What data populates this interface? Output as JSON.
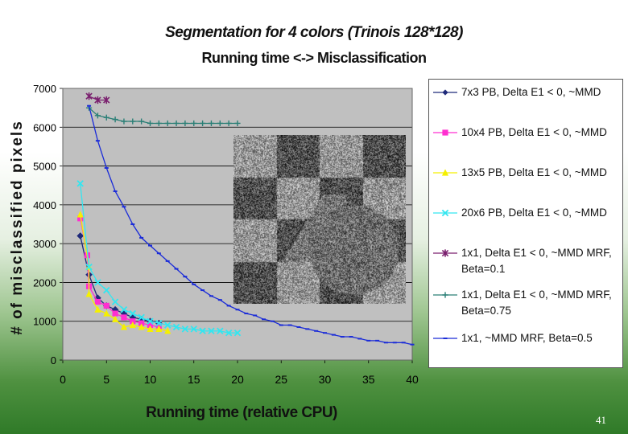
{
  "slide": {
    "title": "Segmentation for 4 colors (Trinois 128*128)",
    "subtitle": "Running time <-> Misclassification",
    "page_number": "41"
  },
  "chart_data": {
    "type": "line",
    "xlabel": "Running time (relative CPU)",
    "ylabel": "# of misclassified pixels",
    "xlim": [
      0,
      40
    ],
    "ylim": [
      0,
      7000
    ],
    "x_ticks": [
      "0",
      "5",
      "10",
      "15",
      "20",
      "25",
      "30",
      "35",
      "40"
    ],
    "y_ticks": [
      "0",
      "1000",
      "2000",
      "3000",
      "4000",
      "5000",
      "6000",
      "7000"
    ],
    "grid": true,
    "legend_position": "right",
    "series": [
      {
        "name": "7x3 PB,  Delta E1 < 0, ~MMD",
        "color": "#1f2a7a",
        "marker": "diamond",
        "x": [
          2,
          3,
          4,
          5,
          6,
          7,
          8,
          9,
          10,
          11
        ],
        "y": [
          3200,
          2200,
          1600,
          1400,
          1300,
          1200,
          1100,
          1050,
          1000,
          950
        ]
      },
      {
        "name": "10x4 PB,  Delta E1 < 0, ~MMD",
        "color": "#ff2fd0",
        "marker": "square",
        "x": [
          2,
          2.8,
          3,
          4,
          5,
          6,
          7,
          8,
          9,
          10,
          11
        ],
        "y": [
          3650,
          2700,
          1900,
          1500,
          1400,
          1200,
          1100,
          1000,
          950,
          900,
          850
        ]
      },
      {
        "name": "13x5 PB,  Delta E1 < 0, ~MMD",
        "color": "#f5f000",
        "marker": "triangle",
        "x": [
          2,
          3,
          3,
          4,
          5,
          6,
          7,
          8,
          9,
          10,
          11,
          12
        ],
        "y": [
          3750,
          2400,
          1700,
          1300,
          1200,
          1050,
          850,
          900,
          850,
          800,
          800,
          750
        ]
      },
      {
        "name": "20x6 PB,  Delta E1 < 0, ~MMD",
        "color": "#33e6f0",
        "marker": "x",
        "x": [
          2,
          3,
          4,
          5,
          6,
          7,
          8,
          9,
          10,
          11,
          12,
          13,
          14,
          15,
          16,
          17,
          18,
          19,
          20
        ],
        "y": [
          4550,
          2400,
          2000,
          1800,
          1500,
          1300,
          1200,
          1100,
          1000,
          950,
          900,
          850,
          800,
          800,
          750,
          750,
          750,
          700,
          700
        ]
      },
      {
        "name": "1x1,  Delta E1 < 0, ~MMD MRF, Beta=0.1",
        "color": "#7a1f6e",
        "marker": "star",
        "x": [
          3,
          4,
          5
        ],
        "y": [
          6800,
          6700,
          6700
        ]
      },
      {
        "name": "1x1, Delta E1 < 0, ~MMD MRF, Beta=0.75",
        "color": "#2a7f76",
        "marker": "plus",
        "x": [
          3,
          4,
          5,
          6,
          7,
          8,
          9,
          10,
          11,
          12,
          13,
          14,
          15,
          16,
          17,
          18,
          19,
          20
        ],
        "y": [
          6500,
          6300,
          6250,
          6200,
          6150,
          6150,
          6150,
          6100,
          6100,
          6100,
          6100,
          6100,
          6100,
          6100,
          6100,
          6100,
          6100,
          6100
        ]
      },
      {
        "name": "1x1,  ~MMD MRF,  Beta=0.5",
        "color": "#1a2bd8",
        "marker": "dash",
        "x": [
          3,
          4,
          5,
          6,
          7,
          8,
          9,
          10,
          11,
          12,
          13,
          14,
          15,
          16,
          17,
          18,
          19,
          20,
          21,
          22,
          23,
          24,
          25,
          26,
          27,
          28,
          29,
          30,
          31,
          32,
          33,
          34,
          35,
          36,
          37,
          38,
          39,
          40
        ],
        "y": [
          6550,
          5650,
          4950,
          4350,
          3950,
          3500,
          3150,
          2950,
          2750,
          2550,
          2350,
          2150,
          1950,
          1800,
          1650,
          1550,
          1400,
          1300,
          1200,
          1150,
          1050,
          1000,
          900,
          900,
          850,
          800,
          750,
          700,
          650,
          600,
          600,
          550,
          500,
          500,
          450,
          450,
          450,
          400
        ]
      }
    ]
  }
}
